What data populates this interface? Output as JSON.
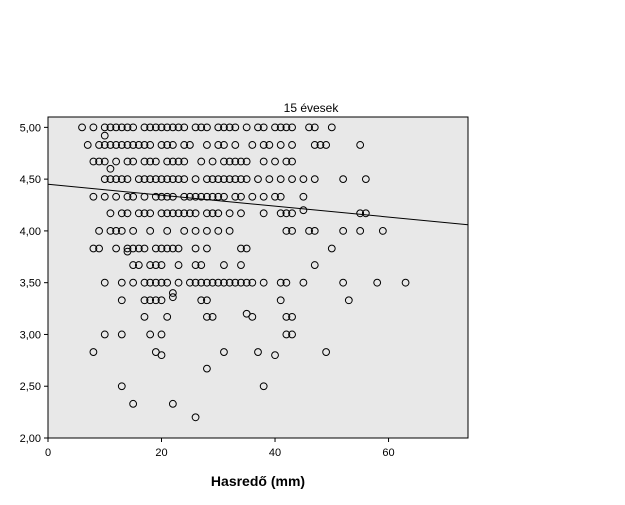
{
  "chart_data": {
    "type": "scatter",
    "title": "15 évesek",
    "xlabel": "Hasredő (mm)",
    "ylabel": "",
    "xlim": [
      0,
      74
    ],
    "ylim": [
      2.0,
      5.1
    ],
    "x_ticks": [
      0,
      20,
      40,
      60
    ],
    "y_ticks": [
      2.0,
      2.5,
      3.0,
      3.5,
      4.0,
      4.5,
      5.0
    ],
    "x_tick_labels": [
      "0",
      "20",
      "40",
      "60"
    ],
    "y_tick_labels": [
      "2,00",
      "2,50",
      "3,00",
      "3,50",
      "4,00",
      "4,50",
      "5,00"
    ],
    "plot_background": "#e8e8e8",
    "marker": "hollow-circle",
    "fit_line": {
      "x": [
        0,
        74
      ],
      "y": [
        4.45,
        4.06
      ]
    },
    "series": [
      {
        "points": [
          [
            6,
            5.0
          ],
          [
            8,
            5.0
          ],
          [
            10,
            5.0
          ],
          [
            11,
            5.0
          ],
          [
            12,
            5.0
          ],
          [
            13,
            5.0
          ],
          [
            14,
            5.0
          ],
          [
            15,
            5.0
          ],
          [
            17,
            5.0
          ],
          [
            18,
            5.0
          ],
          [
            19,
            5.0
          ],
          [
            20,
            5.0
          ],
          [
            21,
            5.0
          ],
          [
            22,
            5.0
          ],
          [
            23,
            5.0
          ],
          [
            24,
            5.0
          ],
          [
            26,
            5.0
          ],
          [
            27,
            5.0
          ],
          [
            28,
            5.0
          ],
          [
            30,
            5.0
          ],
          [
            31,
            5.0
          ],
          [
            32,
            5.0
          ],
          [
            33,
            5.0
          ],
          [
            35,
            5.0
          ],
          [
            37,
            5.0
          ],
          [
            38,
            5.0
          ],
          [
            40,
            5.0
          ],
          [
            41,
            5.0
          ],
          [
            42,
            5.0
          ],
          [
            43,
            5.0
          ],
          [
            46,
            5.0
          ],
          [
            47,
            5.0
          ],
          [
            50,
            5.0
          ],
          [
            10,
            4.92
          ],
          [
            7,
            4.83
          ],
          [
            9,
            4.83
          ],
          [
            10,
            4.83
          ],
          [
            11,
            4.83
          ],
          [
            12,
            4.83
          ],
          [
            13,
            4.83
          ],
          [
            14,
            4.83
          ],
          [
            15,
            4.83
          ],
          [
            16,
            4.83
          ],
          [
            17,
            4.83
          ],
          [
            18,
            4.83
          ],
          [
            20,
            4.83
          ],
          [
            21,
            4.83
          ],
          [
            22,
            4.83
          ],
          [
            24,
            4.83
          ],
          [
            25,
            4.83
          ],
          [
            28,
            4.83
          ],
          [
            30,
            4.83
          ],
          [
            31,
            4.83
          ],
          [
            33,
            4.83
          ],
          [
            36,
            4.83
          ],
          [
            38,
            4.83
          ],
          [
            39,
            4.83
          ],
          [
            41,
            4.83
          ],
          [
            43,
            4.83
          ],
          [
            47,
            4.83
          ],
          [
            48,
            4.83
          ],
          [
            49,
            4.83
          ],
          [
            55,
            4.83
          ],
          [
            8,
            4.67
          ],
          [
            9,
            4.67
          ],
          [
            10,
            4.67
          ],
          [
            12,
            4.67
          ],
          [
            14,
            4.67
          ],
          [
            15,
            4.67
          ],
          [
            17,
            4.67
          ],
          [
            18,
            4.67
          ],
          [
            19,
            4.67
          ],
          [
            21,
            4.67
          ],
          [
            22,
            4.67
          ],
          [
            23,
            4.67
          ],
          [
            24,
            4.67
          ],
          [
            27,
            4.67
          ],
          [
            29,
            4.67
          ],
          [
            31,
            4.67
          ],
          [
            32,
            4.67
          ],
          [
            33,
            4.67
          ],
          [
            34,
            4.67
          ],
          [
            35,
            4.67
          ],
          [
            38,
            4.67
          ],
          [
            40,
            4.67
          ],
          [
            42,
            4.67
          ],
          [
            43,
            4.67
          ],
          [
            11,
            4.6
          ],
          [
            10,
            4.5
          ],
          [
            11,
            4.5
          ],
          [
            12,
            4.5
          ],
          [
            13,
            4.5
          ],
          [
            14,
            4.5
          ],
          [
            16,
            4.5
          ],
          [
            17,
            4.5
          ],
          [
            18,
            4.5
          ],
          [
            19,
            4.5
          ],
          [
            20,
            4.5
          ],
          [
            21,
            4.5
          ],
          [
            22,
            4.5
          ],
          [
            23,
            4.5
          ],
          [
            24,
            4.5
          ],
          [
            26,
            4.5
          ],
          [
            28,
            4.5
          ],
          [
            29,
            4.5
          ],
          [
            30,
            4.5
          ],
          [
            31,
            4.5
          ],
          [
            32,
            4.5
          ],
          [
            33,
            4.5
          ],
          [
            34,
            4.5
          ],
          [
            35,
            4.5
          ],
          [
            37,
            4.5
          ],
          [
            39,
            4.5
          ],
          [
            41,
            4.5
          ],
          [
            43,
            4.5
          ],
          [
            45,
            4.5
          ],
          [
            47,
            4.5
          ],
          [
            52,
            4.5
          ],
          [
            56,
            4.5
          ],
          [
            8,
            4.33
          ],
          [
            10,
            4.33
          ],
          [
            12,
            4.33
          ],
          [
            14,
            4.33
          ],
          [
            15,
            4.33
          ],
          [
            17,
            4.33
          ],
          [
            19,
            4.33
          ],
          [
            20,
            4.33
          ],
          [
            21,
            4.33
          ],
          [
            22,
            4.33
          ],
          [
            24,
            4.33
          ],
          [
            25,
            4.33
          ],
          [
            26,
            4.33
          ],
          [
            27,
            4.33
          ],
          [
            28,
            4.33
          ],
          [
            29,
            4.33
          ],
          [
            30,
            4.33
          ],
          [
            31,
            4.33
          ],
          [
            33,
            4.33
          ],
          [
            34,
            4.33
          ],
          [
            36,
            4.33
          ],
          [
            38,
            4.33
          ],
          [
            40,
            4.33
          ],
          [
            41,
            4.33
          ],
          [
            45,
            4.33
          ],
          [
            11,
            4.17
          ],
          [
            13,
            4.17
          ],
          [
            14,
            4.17
          ],
          [
            16,
            4.17
          ],
          [
            17,
            4.17
          ],
          [
            18,
            4.17
          ],
          [
            20,
            4.17
          ],
          [
            21,
            4.17
          ],
          [
            22,
            4.17
          ],
          [
            23,
            4.17
          ],
          [
            24,
            4.17
          ],
          [
            25,
            4.17
          ],
          [
            26,
            4.17
          ],
          [
            28,
            4.17
          ],
          [
            29,
            4.17
          ],
          [
            30,
            4.17
          ],
          [
            32,
            4.17
          ],
          [
            34,
            4.17
          ],
          [
            38,
            4.17
          ],
          [
            41,
            4.17
          ],
          [
            42,
            4.17
          ],
          [
            43,
            4.17
          ],
          [
            45,
            4.2
          ],
          [
            55,
            4.17
          ],
          [
            56,
            4.17
          ],
          [
            9,
            4.0
          ],
          [
            11,
            4.0
          ],
          [
            12,
            4.0
          ],
          [
            13,
            4.0
          ],
          [
            15,
            4.0
          ],
          [
            18,
            4.0
          ],
          [
            21,
            4.0
          ],
          [
            24,
            4.0
          ],
          [
            26,
            4.0
          ],
          [
            28,
            4.0
          ],
          [
            30,
            4.0
          ],
          [
            32,
            4.0
          ],
          [
            42,
            4.0
          ],
          [
            43,
            4.0
          ],
          [
            46,
            4.0
          ],
          [
            47,
            4.0
          ],
          [
            52,
            4.0
          ],
          [
            55,
            4.0
          ],
          [
            59,
            4.0
          ],
          [
            8,
            3.83
          ],
          [
            9,
            3.83
          ],
          [
            12,
            3.83
          ],
          [
            14,
            3.83
          ],
          [
            15,
            3.83
          ],
          [
            16,
            3.83
          ],
          [
            17,
            3.83
          ],
          [
            19,
            3.83
          ],
          [
            20,
            3.83
          ],
          [
            21,
            3.83
          ],
          [
            22,
            3.83
          ],
          [
            23,
            3.83
          ],
          [
            26,
            3.83
          ],
          [
            28,
            3.83
          ],
          [
            34,
            3.83
          ],
          [
            35,
            3.83
          ],
          [
            50,
            3.83
          ],
          [
            14,
            3.8
          ],
          [
            15,
            3.67
          ],
          [
            16,
            3.67
          ],
          [
            18,
            3.67
          ],
          [
            19,
            3.67
          ],
          [
            20,
            3.67
          ],
          [
            23,
            3.67
          ],
          [
            26,
            3.67
          ],
          [
            27,
            3.67
          ],
          [
            31,
            3.67
          ],
          [
            34,
            3.67
          ],
          [
            47,
            3.67
          ],
          [
            10,
            3.5
          ],
          [
            13,
            3.5
          ],
          [
            15,
            3.5
          ],
          [
            17,
            3.5
          ],
          [
            18,
            3.5
          ],
          [
            19,
            3.5
          ],
          [
            20,
            3.5
          ],
          [
            21,
            3.5
          ],
          [
            23,
            3.5
          ],
          [
            25,
            3.5
          ],
          [
            26,
            3.5
          ],
          [
            27,
            3.5
          ],
          [
            28,
            3.5
          ],
          [
            29,
            3.5
          ],
          [
            30,
            3.5
          ],
          [
            31,
            3.5
          ],
          [
            32,
            3.5
          ],
          [
            33,
            3.5
          ],
          [
            34,
            3.5
          ],
          [
            35,
            3.5
          ],
          [
            36,
            3.5
          ],
          [
            38,
            3.5
          ],
          [
            41,
            3.5
          ],
          [
            42,
            3.5
          ],
          [
            45,
            3.5
          ],
          [
            52,
            3.5
          ],
          [
            58,
            3.5
          ],
          [
            63,
            3.5
          ],
          [
            22,
            3.4
          ],
          [
            22,
            3.36
          ],
          [
            13,
            3.33
          ],
          [
            17,
            3.33
          ],
          [
            18,
            3.33
          ],
          [
            19,
            3.33
          ],
          [
            20,
            3.33
          ],
          [
            27,
            3.33
          ],
          [
            28,
            3.33
          ],
          [
            41,
            3.33
          ],
          [
            53,
            3.33
          ],
          [
            17,
            3.17
          ],
          [
            21,
            3.17
          ],
          [
            28,
            3.17
          ],
          [
            29,
            3.17
          ],
          [
            35,
            3.2
          ],
          [
            36,
            3.17
          ],
          [
            42,
            3.17
          ],
          [
            43,
            3.17
          ],
          [
            10,
            3.0
          ],
          [
            13,
            3.0
          ],
          [
            18,
            3.0
          ],
          [
            20,
            3.0
          ],
          [
            42,
            3.0
          ],
          [
            43,
            3.0
          ],
          [
            8,
            2.83
          ],
          [
            19,
            2.83
          ],
          [
            31,
            2.83
          ],
          [
            37,
            2.83
          ],
          [
            49,
            2.83
          ],
          [
            20,
            2.8
          ],
          [
            40,
            2.8
          ],
          [
            28,
            2.67
          ],
          [
            13,
            2.5
          ],
          [
            38,
            2.5
          ],
          [
            15,
            2.33
          ],
          [
            22,
            2.33
          ],
          [
            26,
            2.2
          ]
        ]
      }
    ]
  }
}
